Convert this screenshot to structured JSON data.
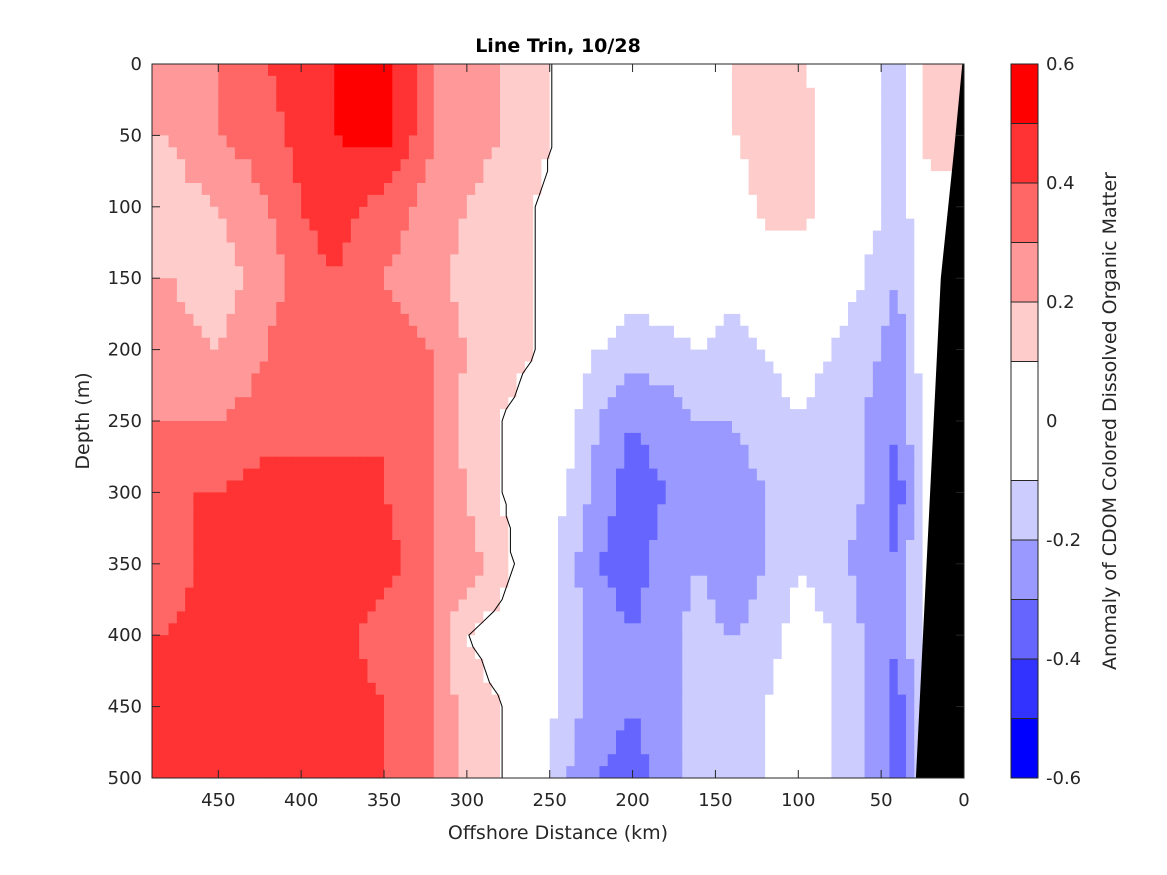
{
  "chart_data": {
    "type": "heatmap",
    "subtype": "filled-contour section",
    "title": "Line Trin, 10/28",
    "xlabel": "Offshore Distance (km)",
    "ylabel": "Depth (m)",
    "xlim": [
      490,
      0
    ],
    "x_reversed": true,
    "ylim": [
      0,
      500
    ],
    "y_reversed": true,
    "xticks": [
      450,
      400,
      350,
      300,
      250,
      200,
      150,
      100,
      50,
      0
    ],
    "yticks": [
      0,
      50,
      100,
      150,
      200,
      250,
      300,
      350,
      400,
      450,
      500
    ],
    "colorbar": {
      "label": "Anomaly of CDOM Colored Dissolved Organic Matter",
      "limits": [
        -0.6,
        0.6
      ],
      "ticks": [
        0.6,
        0.4,
        0.2,
        0,
        -0.2,
        -0.4,
        -0.6
      ],
      "levels": [
        -0.6,
        -0.5,
        -0.4,
        -0.3,
        -0.2,
        -0.1,
        0.1,
        0.2,
        0.3,
        0.4,
        0.5,
        0.6
      ],
      "colors": [
        "#0000ff",
        "#3333ff",
        "#6666ff",
        "#9999ff",
        "#ccccff",
        "#ffffff",
        "#ffcccc",
        "#ff9999",
        "#ff6666",
        "#ff3333",
        "#ff0000"
      ]
    },
    "grid": false,
    "distance_km": [
      480,
      450,
      420,
      400,
      380,
      350,
      320,
      300,
      280,
      260,
      240,
      220,
      200,
      180,
      160,
      140,
      120,
      100,
      80,
      60,
      40,
      20
    ],
    "depth_m": [
      0,
      50,
      100,
      150,
      200,
      250,
      300,
      350,
      400,
      450,
      500
    ],
    "anomaly": [
      [
        0.3,
        0.3,
        0.4,
        0.45,
        0.5,
        0.55,
        0.3,
        0.25,
        0.2,
        0.15,
        0.05,
        0.0,
        0.0,
        0.0,
        0.05,
        0.1,
        0.15,
        0.15,
        0.0,
        -0.05,
        -0.15,
        0.2
      ],
      [
        0.2,
        0.3,
        0.35,
        0.45,
        0.5,
        0.55,
        0.3,
        0.25,
        0.2,
        0.15,
        0.05,
        0.0,
        0.0,
        0.05,
        0.0,
        0.1,
        0.15,
        0.15,
        0.05,
        -0.05,
        -0.15,
        0.2
      ],
      [
        0.15,
        0.2,
        0.3,
        0.4,
        0.45,
        0.35,
        0.25,
        0.2,
        0.15,
        0.1,
        0.05,
        0.0,
        0.0,
        0.0,
        0.0,
        0.0,
        0.15,
        0.15,
        0.05,
        -0.05,
        -0.15,
        0.0
      ],
      [
        0.2,
        0.15,
        0.25,
        0.35,
        0.4,
        0.3,
        0.25,
        0.15,
        0.15,
        0.1,
        0.0,
        0.0,
        -0.05,
        0.0,
        0.0,
        -0.05,
        0.0,
        0.0,
        -0.05,
        -0.1,
        -0.2,
        0.0
      ],
      [
        0.25,
        0.2,
        0.3,
        0.4,
        0.4,
        0.35,
        0.3,
        0.2,
        0.2,
        0.1,
        -0.05,
        -0.1,
        -0.15,
        -0.15,
        -0.1,
        -0.15,
        -0.1,
        -0.05,
        -0.1,
        -0.15,
        -0.25,
        0.0
      ],
      [
        0.3,
        0.3,
        0.35,
        0.4,
        0.35,
        0.4,
        0.3,
        0.15,
        0.1,
        0.0,
        -0.05,
        -0.2,
        -0.3,
        -0.25,
        -0.2,
        -0.2,
        -0.15,
        -0.1,
        -0.15,
        -0.2,
        -0.3,
        0.0
      ],
      [
        0.4,
        0.4,
        0.45,
        0.4,
        0.45,
        0.4,
        0.3,
        0.2,
        0.1,
        0.0,
        -0.1,
        -0.25,
        -0.35,
        -0.3,
        -0.25,
        -0.25,
        -0.2,
        -0.1,
        -0.1,
        -0.2,
        -0.35,
        0.0
      ],
      [
        0.35,
        0.45,
        0.45,
        0.5,
        0.4,
        0.45,
        0.3,
        0.25,
        0.15,
        0.0,
        -0.15,
        -0.3,
        -0.35,
        -0.25,
        -0.2,
        -0.3,
        -0.2,
        -0.1,
        -0.15,
        -0.25,
        -0.3,
        0.0
      ],
      [
        0.4,
        0.45,
        0.5,
        0.4,
        0.45,
        0.35,
        0.3,
        0.1,
        0.05,
        0.0,
        -0.15,
        -0.25,
        -0.3,
        -0.25,
        -0.15,
        -0.2,
        -0.15,
        -0.05,
        -0.1,
        -0.2,
        -0.3,
        0.0
      ],
      [
        0.45,
        0.45,
        0.5,
        0.45,
        0.45,
        0.4,
        0.3,
        0.15,
        0.1,
        0.0,
        -0.15,
        -0.25,
        -0.3,
        -0.25,
        -0.15,
        -0.15,
        -0.1,
        -0.05,
        -0.1,
        -0.2,
        -0.35,
        0.0
      ],
      [
        0.4,
        0.45,
        0.5,
        0.45,
        0.45,
        0.4,
        0.3,
        0.15,
        0.1,
        0.0,
        -0.2,
        -0.3,
        -0.35,
        -0.25,
        -0.15,
        -0.2,
        -0.1,
        0.0,
        -0.1,
        -0.2,
        -0.35,
        0.0
      ]
    ],
    "seafloor_mask": true
  }
}
